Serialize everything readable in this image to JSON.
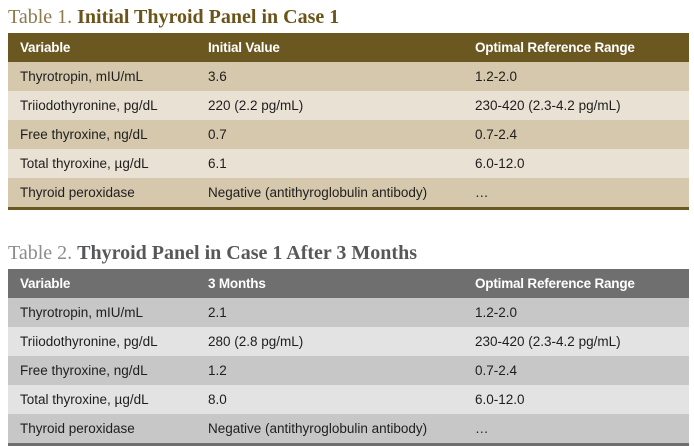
{
  "page": {
    "background": "#ffffff"
  },
  "tables": [
    {
      "title_prefix": "Table 1. ",
      "title": "Initial Thyroid Panel in Case 1",
      "columns": [
        "Variable",
        "Initial Value",
        "Optimal Reference Range"
      ],
      "rows": [
        [
          "Thyrotropin, mIU/mL",
          "3.6",
          "1.2-2.0"
        ],
        [
          "Triiodothyronine, pg/dL",
          "220 (2.2 pg/mL)",
          "230-420 (2.3-4.2 pg/mL)"
        ],
        [
          "Free thyroxine, ng/dL",
          "0.7",
          "0.7-2.4"
        ],
        [
          "Total thyroxine, µg/dL",
          "6.1",
          "6.0-12.0"
        ],
        [
          "Thyroid peroxidase",
          "Negative (antithyroglobulin antibody)",
          "…"
        ]
      ],
      "theme": {
        "header_bg": "#6b5820",
        "header_text": "#ffffff",
        "row_odd_bg": "#d5c8ac",
        "row_even_bg": "#e9e1d3",
        "title_prefix_color": "#8d7a4d",
        "title_color": "#6b5419",
        "bottom_border": "#6b5820"
      }
    },
    {
      "title_prefix": "Table 2. ",
      "title": "Thyroid Panel in Case 1 After 3 Months",
      "columns": [
        "Variable",
        "3 Months",
        "Optimal Reference Range"
      ],
      "rows": [
        [
          "Thyrotropin, mIU/mL",
          "2.1",
          "1.2-2.0"
        ],
        [
          "Triiodothyronine, pg/dL",
          "280 (2.8 pg/mL)",
          "230-420 (2.3-4.2 pg/mL)"
        ],
        [
          "Free thyroxine, ng/dL",
          "1.2",
          "0.7-2.4"
        ],
        [
          "Total thyroxine, µg/dL",
          "8.0",
          "6.0-12.0"
        ],
        [
          "Thyroid peroxidase",
          "Negative (antithyroglobulin antibody)",
          "…"
        ]
      ],
      "theme": {
        "header_bg": "#6f6f6f",
        "header_text": "#ffffff",
        "row_odd_bg": "#c7c7c7",
        "row_even_bg": "#e3e3e3",
        "title_prefix_color": "#8c8c8c",
        "title_color": "#57585a",
        "bottom_border": "#6f6f6f"
      }
    }
  ]
}
